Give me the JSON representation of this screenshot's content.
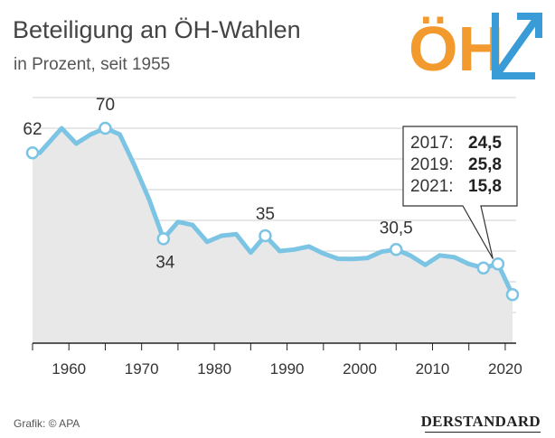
{
  "title": "Beteiligung an ÖH-Wahlen",
  "subtitle": "in Prozent, seit 1955",
  "logo_text": "ÖH",
  "source": "Grafik: © APA",
  "brand": "DERSTANDARD",
  "colors": {
    "line": "#7cc4e4",
    "area": "#e8e8e8",
    "logo_orange": "#f39a2e",
    "logo_blue": "#3a9cd6",
    "grid": "#cfcfcf"
  },
  "chart_data": {
    "type": "area",
    "xlim": [
      1955,
      2021.5
    ],
    "ylim": [
      0,
      80
    ],
    "x_ticks": [
      "1960",
      "1970",
      "1980",
      "1990",
      "2000",
      "2010",
      "2020"
    ],
    "grid": "horizontal",
    "x": [
      1955,
      1956,
      1959,
      1961,
      1963,
      1965,
      1967,
      1969,
      1971,
      1973,
      1975,
      1977,
      1979,
      1981,
      1983,
      1985,
      1987,
      1989,
      1991,
      1993,
      1995,
      1997,
      1999,
      2001,
      2003,
      2005,
      2007,
      2009,
      2011,
      2013,
      2015,
      2017,
      2019,
      2021
    ],
    "y": [
      62,
      62,
      70,
      65,
      68,
      70,
      68,
      58,
      47,
      34,
      39.5,
      38.5,
      33,
      35,
      35.5,
      29.5,
      35,
      30,
      30.5,
      31.5,
      29.2,
      27.5,
      27.4,
      27.7,
      29.8,
      30.5,
      28.5,
      25.5,
      28.6,
      28,
      25.8,
      24.5,
      25.8,
      15.8
    ],
    "highlighted": [
      {
        "year": 1955,
        "value": 62,
        "label": "62"
      },
      {
        "year": 1965,
        "value": 70,
        "label": "70"
      },
      {
        "year": 1973,
        "value": 34,
        "label": "34"
      },
      {
        "year": 1987,
        "value": 35,
        "label": "35"
      },
      {
        "year": 2005,
        "value": 30.5,
        "label": "30,5"
      },
      {
        "year": 2017,
        "value": 24.5,
        "label": ""
      },
      {
        "year": 2019,
        "value": 25.8,
        "label": ""
      },
      {
        "year": 2021,
        "value": 15.8,
        "label": ""
      }
    ],
    "annotation": [
      {
        "year": "2017:",
        "value": "24,5"
      },
      {
        "year": "2019:",
        "value": "25,8"
      },
      {
        "year": "2021:",
        "value": "15,8"
      }
    ]
  }
}
